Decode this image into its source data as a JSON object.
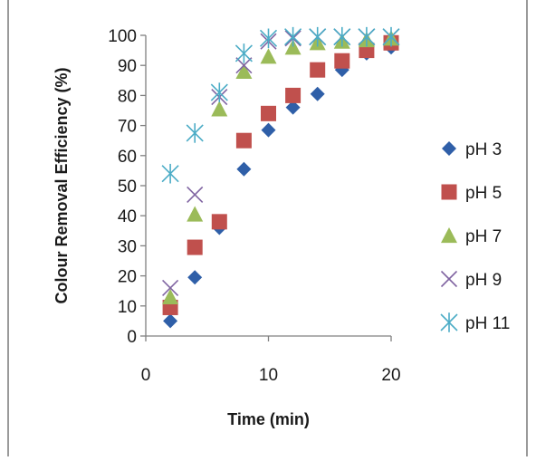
{
  "chart_data": {
    "type": "scatter",
    "title": "",
    "xlabel": "Time (min)",
    "ylabel": "Colour Removal Efficiency (%)",
    "xlim": [
      0,
      20
    ],
    "ylim": [
      0,
      100
    ],
    "x_ticks": [
      0,
      10,
      20
    ],
    "y_ticks": [
      0,
      10,
      20,
      30,
      40,
      50,
      60,
      70,
      80,
      90,
      100
    ],
    "grid": false,
    "legend_position": "right",
    "series": [
      {
        "name": "pH 3",
        "marker": "diamond",
        "color": "#2f5fa8",
        "x": [
          2,
          4,
          6,
          8,
          10,
          12,
          14,
          16,
          18,
          20
        ],
        "y": [
          5,
          19.5,
          36,
          55.5,
          68.5,
          76,
          80.5,
          88.5,
          94,
          96
        ]
      },
      {
        "name": "pH 5",
        "marker": "square",
        "color": "#c0504d",
        "x": [
          2,
          4,
          6,
          8,
          10,
          12,
          14,
          16,
          18,
          20
        ],
        "y": [
          9.5,
          29.5,
          38,
          65,
          74,
          80,
          88.5,
          91.5,
          95,
          97.5
        ]
      },
      {
        "name": "pH 7",
        "marker": "triangle",
        "color": "#9bbb59",
        "x": [
          2,
          4,
          6,
          8,
          10,
          12,
          14,
          16,
          18,
          20
        ],
        "y": [
          13,
          40.5,
          75.5,
          88,
          93,
          96,
          97.5,
          98,
          98.5,
          99
        ]
      },
      {
        "name": "pH 9",
        "marker": "x",
        "color": "#8064a2",
        "x": [
          2,
          4,
          6,
          8,
          10,
          12,
          14,
          16,
          18,
          20
        ],
        "y": [
          16,
          47,
          79.5,
          90,
          98,
          99,
          99.5,
          99.5,
          99.5,
          99.5
        ]
      },
      {
        "name": "pH 11",
        "marker": "star",
        "color": "#4bacc6",
        "x": [
          2,
          4,
          6,
          8,
          10,
          12,
          14,
          16,
          18,
          20
        ],
        "y": [
          54,
          67.5,
          81,
          94,
          99,
          99.5,
          99.5,
          99.5,
          99.5,
          99.5
        ]
      }
    ]
  }
}
